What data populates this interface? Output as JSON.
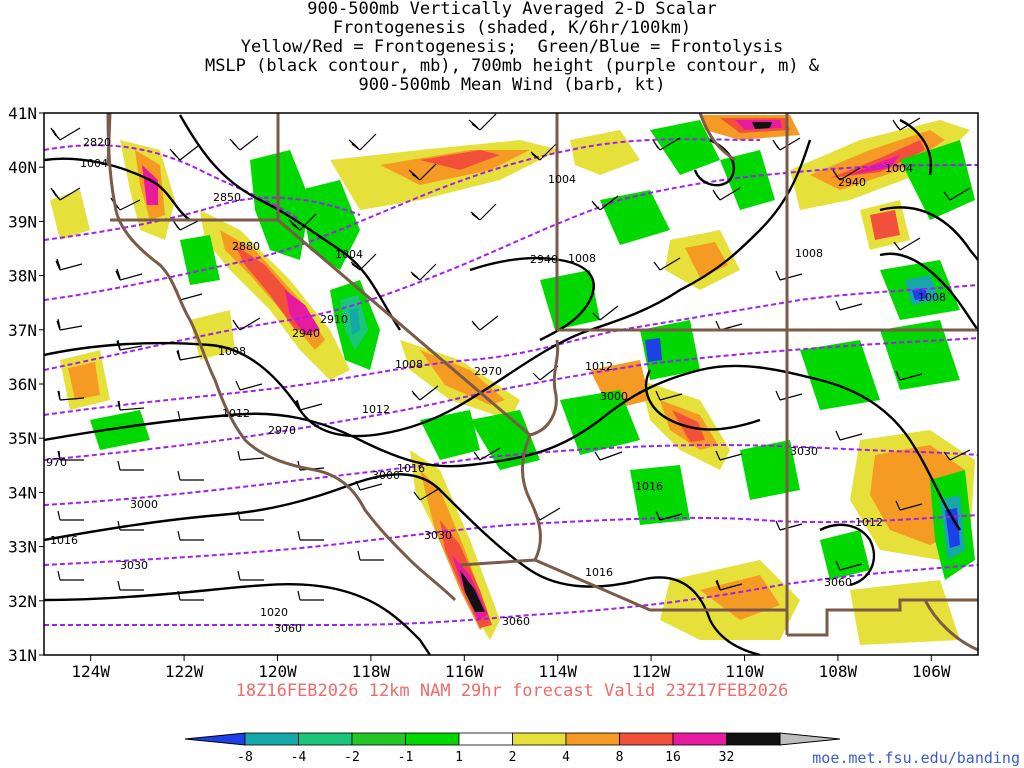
{
  "title": {
    "lines": [
      "900-500mb Vertically Averaged 2-D Scalar",
      "Frontogenesis (shaded, K/6hr/100km)",
      "Yellow/Red = Frontogenesis;  Green/Blue = Frontolysis",
      "MSLP (black contour, mb), 700mb height (purple contour, m) &",
      "900-500mb Mean Wind (barb, kt)"
    ]
  },
  "axes": {
    "lat_labels": [
      "41N",
      "40N",
      "39N",
      "38N",
      "37N",
      "36N",
      "35N",
      "34N",
      "33N",
      "32N",
      "31N"
    ],
    "lon_labels": [
      "124W",
      "122W",
      "120W",
      "118W",
      "116W",
      "114W",
      "112W",
      "110W",
      "108W",
      "106W"
    ]
  },
  "map_extent": {
    "lon_min": -125,
    "lon_max": -105,
    "lat_min": 31,
    "lat_max": 41
  },
  "forecast_caption": "18Z16FEB2026 12km NAM 29hr forecast Valid 23Z17FEB2026",
  "credit": "moe.met.fsu.edu/banding",
  "colorbar": {
    "ticks": [
      "-8",
      "-4",
      "-2",
      "-1",
      "1",
      "2",
      "4",
      "8",
      "16",
      "32"
    ],
    "colors": [
      "#1f3fe8",
      "#16a8a8",
      "#19c77a",
      "#25c725",
      "#00d800",
      "#ffffff",
      "#e6e03a",
      "#f59a22",
      "#f2503a",
      "#e81aa0",
      "#111111",
      "#bdbdbd"
    ]
  },
  "mslp_labels": [
    "1004",
    "1004",
    "1004",
    "1004",
    "1008",
    "1008",
    "1008",
    "1008",
    "1008",
    "1012",
    "1012",
    "1012",
    "1012",
    "1016",
    "1016",
    "1016",
    "1016",
    "1020"
  ],
  "height_labels": [
    "2820",
    "2850",
    "2880",
    "2910",
    "2940",
    "2940",
    "2940",
    "2970",
    "2970",
    "3000",
    "3000",
    "3000",
    "3030",
    "3030",
    "3030",
    "3060",
    "3060",
    "3060",
    "970"
  ],
  "colors": {
    "mslp": "#000000",
    "height": "#a020f0",
    "borders": "#7a5a48",
    "caption": "#f06a6a",
    "credit": "#3b5bd9"
  }
}
